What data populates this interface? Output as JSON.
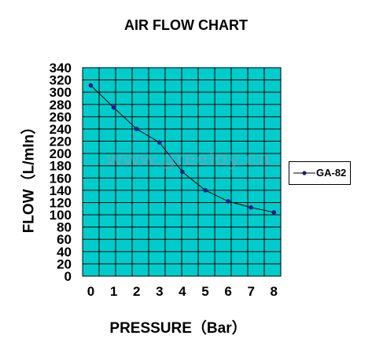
{
  "chart_data": {
    "type": "line",
    "title": "AIR FLOW CHART",
    "xlabel": "PRESSURE（Bar）",
    "ylabel": "FLOW（L/mIn）",
    "x": [
      0,
      1,
      2,
      3,
      4,
      5,
      6,
      7,
      8
    ],
    "x_ticks": [
      "0",
      "1",
      "2",
      "3",
      "4",
      "5",
      "6",
      "7",
      "8"
    ],
    "y_ticks": [
      "0",
      "20",
      "40",
      "60",
      "80",
      "100",
      "120",
      "140",
      "160",
      "180",
      "200",
      "220",
      "240",
      "260",
      "280",
      "300",
      "320",
      "340"
    ],
    "ylim": [
      0,
      340
    ],
    "xlim": [
      0,
      8
    ],
    "grid": true,
    "legend_position": "right",
    "series": [
      {
        "name": "GA-82",
        "values": [
          311,
          275,
          240,
          218,
          170,
          140,
          122,
          112,
          104
        ]
      }
    ],
    "colors": {
      "plot_background": "#00cccc",
      "grid": "#000000",
      "line": "#000000",
      "marker": "#1a1a8c"
    }
  },
  "watermark": "www.greeloy.cn"
}
